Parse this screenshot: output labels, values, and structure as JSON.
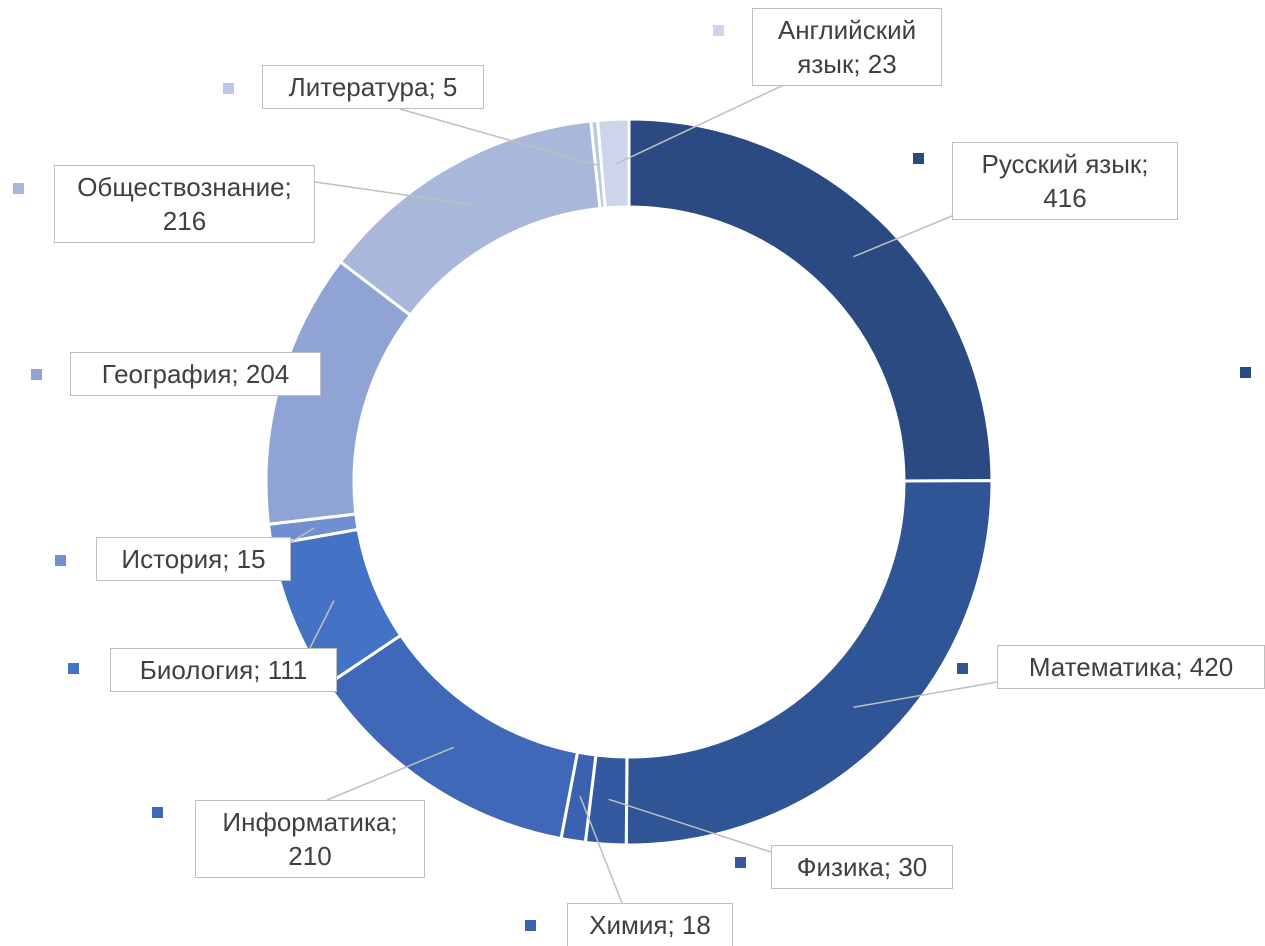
{
  "chart_data": {
    "type": "donut",
    "categories": [
      "Русский язык",
      "Математика",
      "Физика",
      "Химия",
      "Информатика",
      "Биология",
      "История",
      "География",
      "Обществознание",
      "Литература",
      "Английский язык"
    ],
    "values": [
      416,
      420,
      30,
      18,
      210,
      111,
      15,
      204,
      216,
      5,
      23
    ],
    "value_labels": [
      "Русский язык; 416",
      "Математика; 420",
      "Физика; 30",
      "Химия; 18",
      "Информатика; 210",
      "Биология; 111",
      "История; 15",
      "География; 204",
      "Обществознание; 216",
      "Литература; 5",
      "Английский язык; 23"
    ],
    "colors": [
      "#2c4a82",
      "#2f5597",
      "#3359a0",
      "#3a62b0",
      "#4068b8",
      "#4472c4",
      "#6f8fd0",
      "#8fa4d4",
      "#a9b7db",
      "#bcc7e3",
      "#cdd5ea"
    ]
  }
}
